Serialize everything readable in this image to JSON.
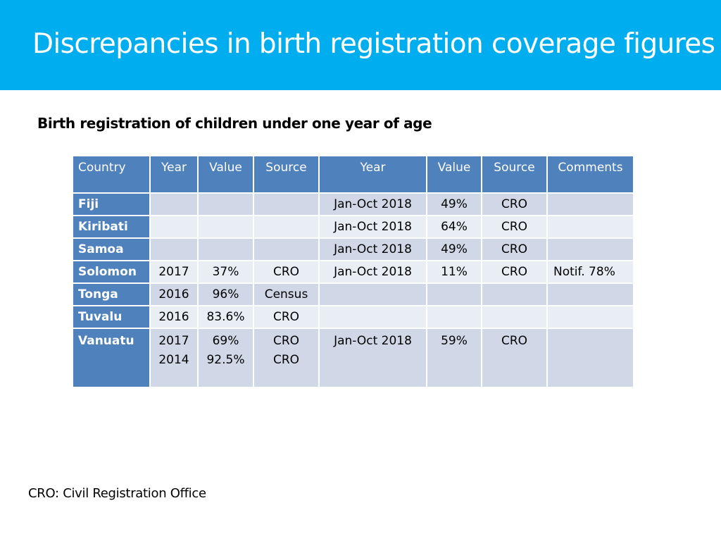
{
  "title": "Discrepancies in birth registration coverage figures",
  "subtitle": "Birth registration of children under one year of age",
  "table": {
    "headers": [
      "Country",
      "Year",
      "Value",
      "Source",
      "Year",
      "Value",
      "Source",
      "Comments"
    ],
    "rows": [
      {
        "country": "Fiji",
        "year1": "",
        "value1": "",
        "source1": "",
        "year2": "Jan-Oct 2018",
        "value2": "49%",
        "source2": "CRO",
        "comments": ""
      },
      {
        "country": "Kiribati",
        "year1": "",
        "value1": "",
        "source1": "",
        "year2": "Jan-Oct 2018",
        "value2": "64%",
        "source2": "CRO",
        "comments": ""
      },
      {
        "country": "Samoa",
        "year1": "",
        "value1": "",
        "source1": "",
        "year2": "Jan-Oct 2018",
        "value2": "49%",
        "source2": "CRO",
        "comments": ""
      },
      {
        "country": "Solomon",
        "year1": "2017",
        "value1": "37%",
        "source1": "CRO",
        "year2": "Jan-Oct 2018",
        "value2": "11%",
        "source2": "CRO",
        "comments": "Notif. 78%"
      },
      {
        "country": "Tonga",
        "year1": "2016",
        "value1": "96%",
        "source1": "Census",
        "year2": "",
        "value2": "",
        "source2": "",
        "comments": ""
      },
      {
        "country": "Tuvalu",
        "year1": "2016",
        "value1": "83.6%",
        "source1": "CRO",
        "year2": "",
        "value2": "",
        "source2": "",
        "comments": ""
      },
      {
        "country": "Vanuatu",
        "year1": "2017\n2014",
        "value1": "69%\n92.5%",
        "source1": "CRO\nCRO",
        "year2": "Jan-Oct 2018",
        "value2": "59%",
        "source2": "CRO",
        "comments": ""
      }
    ]
  },
  "footnote": "CRO: Civil Registration Office",
  "colors": {
    "title_bar": "#00aeef",
    "header_fill": "#4f81bd",
    "row_fill": "#d0d8e8",
    "row_fill_alt": "#e9edf4"
  }
}
